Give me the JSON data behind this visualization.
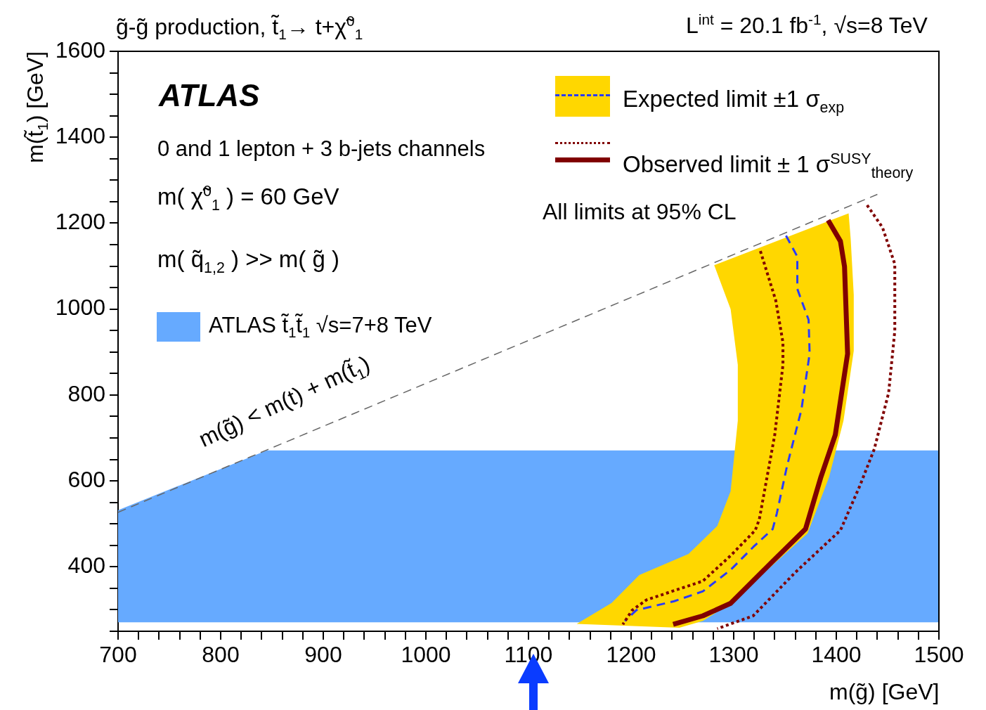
{
  "chart_data": {
    "type": "line",
    "title": "g̃-g̃ production, t̃$_{1}$→ t+χ̃$^{0}$$_{1}$",
    "subtitle": "L$^{int}$ = 20.1 fb$^{-1}$, √s=8 TeV",
    "xlabel": "m(g̃) [GeV]",
    "ylabel": "m(t̃$_{1}$) [GeV]",
    "annotations": [
      "ATLAS",
      "0 and 1 lepton + 3 b-jets channels",
      "m( χ̃$^{0}$$_{1}$ ) = 60 GeV",
      "m( q̃$_{1,2}$ ) >> m( g̃ )",
      "All limits at 95% CL",
      "m(g̃) < m(t) + m(t̃$_{1}$)"
    ],
    "legend": "top right",
    "xlim": [
      700,
      1500
    ],
    "ylim": [
      250,
      1600
    ],
    "xticks": [
      700,
      {
        "value": 720,
        "label": null
      },
      {
        "value": 740,
        "label": null
      },
      {
        "value": 760,
        "label": null
      },
      {
        "value": 780,
        "label": null
      },
      800,
      {
        "value": 820,
        "label": null
      },
      {
        "value": 840,
        "label": null
      },
      {
        "value": 860,
        "label": null
      },
      {
        "value": 880,
        "label": null
      },
      900,
      {
        "value": 920,
        "label": null
      },
      {
        "value": 940,
        "label": null
      },
      {
        "value": 960,
        "label": null
      },
      {
        "value": 980,
        "label": null
      },
      1000,
      {
        "value": 1020,
        "label": null
      },
      {
        "value": 1040,
        "label": null
      },
      {
        "value": 1060,
        "label": null
      },
      {
        "value": 1080,
        "label": null
      },
      1100,
      {
        "value": 1120,
        "label": null
      },
      {
        "value": 1140,
        "label": null
      },
      {
        "value": 1160,
        "label": null
      },
      {
        "value": 1180,
        "label": null
      },
      1200,
      {
        "value": 1220,
        "label": null
      },
      {
        "value": 1240,
        "label": null
      },
      {
        "value": 1260,
        "label": null
      },
      {
        "value": 1280,
        "label": null
      },
      1300,
      {
        "value": 1320,
        "label": null
      },
      {
        "value": 1340,
        "label": null
      },
      {
        "value": 1360,
        "label": null
      },
      {
        "value": 1380,
        "label": null
      },
      1400,
      {
        "value": 1420,
        "label": null
      },
      {
        "value": 1440,
        "label": null
      },
      {
        "value": 1460,
        "label": null
      },
      {
        "value": 1480,
        "label": null
      },
      1500
    ],
    "yticks": [
      {
        "value": 250,
        "label": null
      },
      {
        "value": 300,
        "label": null
      },
      {
        "value": 350,
        "label": null
      },
      400,
      {
        "value": 450,
        "label": null
      },
      {
        "value": 500,
        "label": null
      },
      {
        "value": 550,
        "label": null
      },
      600,
      {
        "value": 650,
        "label": null
      },
      {
        "value": 700,
        "label": null
      },
      {
        "value": 750,
        "label": null
      },
      800,
      {
        "value": 850,
        "label": null
      },
      {
        "value": 900,
        "label": null
      },
      {
        "value": 950,
        "label": null
      },
      1000,
      {
        "value": 1050,
        "label": null
      },
      {
        "value": 1100,
        "label": null
      },
      {
        "value": 1150,
        "label": null
      },
      1200,
      {
        "value": 1250,
        "label": null
      },
      {
        "value": 1300,
        "label": null
      },
      {
        "value": 1350,
        "label": null
      },
      1400,
      {
        "value": 1450,
        "label": null
      },
      {
        "value": 1500,
        "label": null
      },
      {
        "value": 1550,
        "label": null
      },
      1600
    ],
    "series": [
      {
        "type": "area",
        "name": "ATLAS t̃$_{1}$t̃$_{1}$ √s=7+8 TeV",
        "color": "#66aaff",
        "x": [
          700,
          845,
          1500,
          1500,
          700
        ],
        "values": [
          532,
          671,
          671,
          271,
          271
        ]
      },
      {
        "type": "area",
        "color": "#ffd700",
        "x": [
          1281,
          1297,
          1304,
          1304,
          1297,
          1284,
          1256,
          1208,
          1181,
          1147,
          1247,
          1270,
          1297,
          1372,
          1393,
          1407,
          1417,
          1417,
          1414,
          1412
        ],
        "values": [
          1102,
          1000,
          870,
          740,
          576,
          495,
          430,
          381,
          316,
          267,
          258,
          274,
          315,
          478,
          609,
          740,
          903,
          1033,
          1164,
          1223
        ]
      },
      {
        "name": "Expected limit ±1 σ$_{exp}$",
        "color": "#2a3cff",
        "line_style": "dashed",
        "x": [
          1351,
          1362,
          1362,
          1373,
          1374,
          1366,
          1352,
          1342,
          1338,
          1319,
          1297,
          1270,
          1242,
          1205,
          1194
        ],
        "values": [
          1171,
          1122,
          1047,
          975,
          896,
          766,
          635,
          524,
          488,
          446,
          393,
          343,
          320,
          299,
          274
        ]
      },
      {
        "color": "#800000",
        "line_style": "dotted",
        "x": [
          1326,
          1341,
          1348,
          1348,
          1340,
          1325,
          1321,
          1297,
          1270,
          1215,
          1201,
          1192
        ],
        "values": [
          1135,
          1020,
          922,
          870,
          707,
          511,
          485,
          426,
          367,
          323,
          299,
          266
        ]
      },
      {
        "color": "#800000",
        "line_style": "dotted",
        "x": [
          1430,
          1445,
          1457,
          1457,
          1451,
          1437,
          1423,
          1404,
          1360,
          1319,
          1284
        ],
        "values": [
          1242,
          1190,
          1105,
          949,
          805,
          674,
          589,
          485,
          387,
          286,
          256
        ]
      },
      {
        "name": "Observed limit ± 1 σ$^{SUSY}$$_{theory}$",
        "color": "#800000",
        "line_style": "solid",
        "x": [
          1392,
          1404,
          1408,
          1411,
          1399,
          1385,
          1370,
          1338,
          1297,
          1270,
          1241
        ],
        "values": [
          1207,
          1158,
          1099,
          896,
          707,
          609,
          488,
          413,
          315,
          286,
          266
        ]
      },
      {
        "color": "#666666",
        "line_style": "dashed",
        "x": [
          700,
          1440
        ],
        "values": [
          527,
          1267
        ]
      }
    ]
  }
}
